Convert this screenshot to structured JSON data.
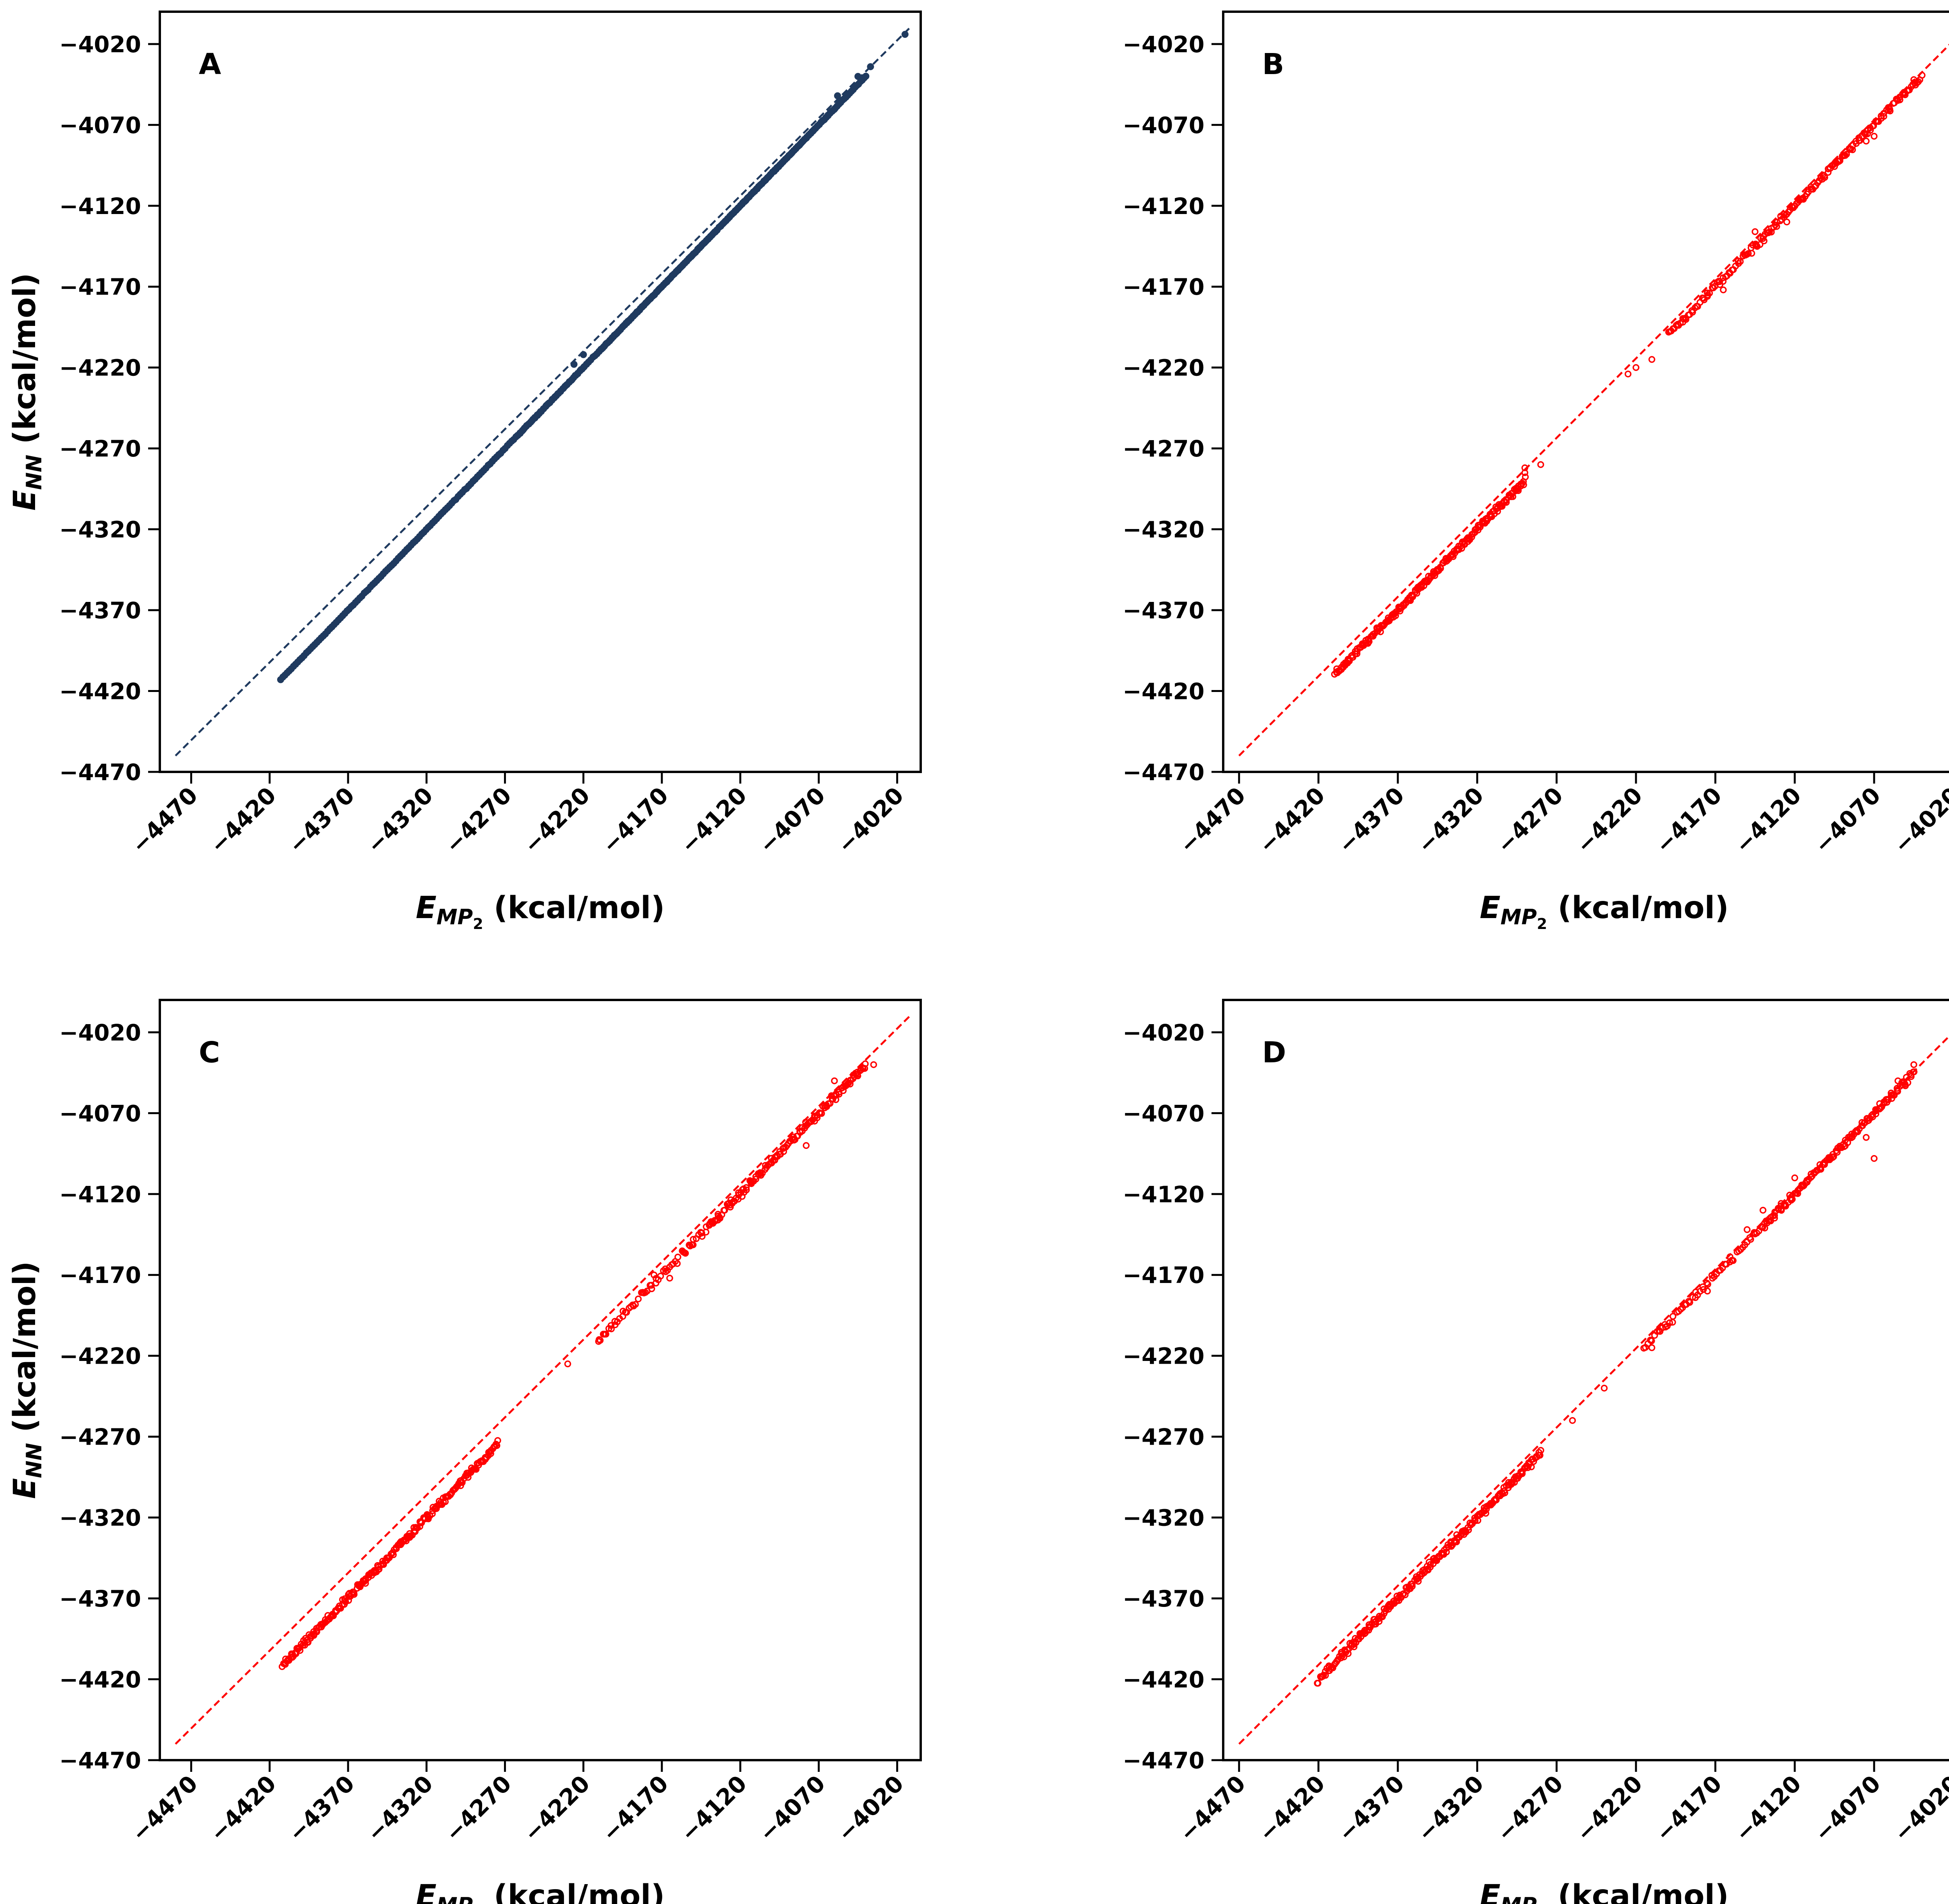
{
  "chart_data": [
    {
      "panel_label": "A",
      "type": "scatter",
      "xlabel_main": "E",
      "xlabel_sub": "MP",
      "xlabel_subsub": "2",
      "xlabel_unit": " (kcal/mol)",
      "ylabel_main": "E",
      "ylabel_sub": "NN",
      "ylabel_unit": " (kcal/mol)",
      "xlim": [
        -4490,
        -4005
      ],
      "ylim": [
        -4470,
        -4000
      ],
      "xticks": [
        -4470,
        -4420,
        -4370,
        -4320,
        -4270,
        -4220,
        -4170,
        -4120,
        -4070,
        -4020
      ],
      "xtick_labels": [
        "−4470",
        "−4420",
        "−4370",
        "−4320",
        "−4270",
        "−4220",
        "−4170",
        "−4120",
        "−4070",
        "−4020"
      ],
      "yticks": [
        -4470,
        -4420,
        -4370,
        -4320,
        -4270,
        -4220,
        -4170,
        -4120,
        -4070,
        -4020
      ],
      "ytick_labels": [
        "−4470",
        "−4420",
        "−4370",
        "−4320",
        "−4270",
        "−4220",
        "−4170",
        "−4120",
        "−4070",
        "−4020"
      ],
      "point_color": "#1f3a5f",
      "line_color": "#1f3a5f",
      "diagonal": [
        [
          -4480,
          -4460
        ],
        [
          -4012,
          -4010
        ]
      ],
      "point_style": "filled",
      "series": [
        {
          "segments": [
            [
              -4413,
              -4060
            ],
            [
              -4262,
              -4218
            ],
            [
              -4210,
              -4040
            ]
          ],
          "n": [
            260,
            25,
            150
          ],
          "spread": 0.4
        },
        {
          "points": [
            [
              -4226,
              -4218
            ],
            [
              -4220,
              -4212
            ],
            [
              -4058,
              -4052
            ],
            [
              -4045,
              -4040
            ],
            [
              -4037,
              -4034
            ],
            [
              -4015,
              -4014
            ]
          ]
        }
      ]
    },
    {
      "panel_label": "B",
      "type": "scatter",
      "xlabel_main": "E",
      "xlabel_sub": "MP",
      "xlabel_subsub": "2",
      "xlabel_unit": " (kcal/mol)",
      "ylabel_main": "",
      "ylabel_sub": "",
      "ylabel_unit": "",
      "xlim": [
        -4480,
        -4000
      ],
      "ylim": [
        -4470,
        -4000
      ],
      "xticks": [
        -4470,
        -4420,
        -4370,
        -4320,
        -4270,
        -4220,
        -4170,
        -4120,
        -4070,
        -4020
      ],
      "xtick_labels": [
        "−4470",
        "−4420",
        "−4370",
        "−4320",
        "−4270",
        "−4220",
        "−4170",
        "−4120",
        "−4070",
        "−4020"
      ],
      "yticks": [
        -4470,
        -4420,
        -4370,
        -4320,
        -4270,
        -4220,
        -4170,
        -4120,
        -4070,
        -4020
      ],
      "ytick_labels": [
        "−4470",
        "−4420",
        "−4370",
        "−4320",
        "−4270",
        "−4220",
        "−4170",
        "−4120",
        "−4070",
        "−4020"
      ],
      "point_color": "#ff0000",
      "line_color": "#ff0000",
      "diagonal": [
        [
          -4470,
          -4460
        ],
        [
          -4012,
          -4010
        ]
      ],
      "point_style": "hollow",
      "series": [
        {
          "segments": [
            [
              -4410,
              -4290
            ],
            [
              -4200,
              -4140
            ],
            [
              -4140,
              -4040
            ]
          ],
          "n": [
            220,
            60,
            120
          ],
          "spread": 3
        },
        {
          "points": [
            [
              -4290,
              -4285
            ],
            [
              -4290,
              -4282
            ],
            [
              -4280,
              -4280
            ],
            [
              -4225,
              -4224
            ],
            [
              -4220,
              -4220
            ],
            [
              -4210,
              -4215
            ],
            [
              -4190,
              -4190
            ],
            [
              -4175,
              -4176
            ],
            [
              -4165,
              -4172
            ],
            [
              -4145,
              -4136
            ],
            [
              -4125,
              -4130
            ],
            [
              -4075,
              -4080
            ],
            [
              -4070,
              -4077
            ],
            [
              -4045,
              -4042
            ]
          ]
        }
      ]
    },
    {
      "panel_label": "C",
      "type": "scatter",
      "xlabel_main": "E",
      "xlabel_sub": "MP",
      "xlabel_subsub": "2",
      "xlabel_unit": " (kcal/mol)",
      "ylabel_main": "E",
      "ylabel_sub": "NN",
      "ylabel_unit": " (kcal/mol)",
      "xlim": [
        -4490,
        -4005
      ],
      "ylim": [
        -4470,
        -4000
      ],
      "xticks": [
        -4470,
        -4420,
        -4370,
        -4320,
        -4270,
        -4220,
        -4170,
        -4120,
        -4070,
        -4020
      ],
      "xtick_labels": [
        "−4470",
        "−4420",
        "−4370",
        "−4320",
        "−4270",
        "−4220",
        "−4170",
        "−4120",
        "−4070",
        "−4020"
      ],
      "yticks": [
        -4470,
        -4420,
        -4370,
        -4320,
        -4270,
        -4220,
        -4170,
        -4120,
        -4070,
        -4020
      ],
      "ytick_labels": [
        "−4470",
        "−4420",
        "−4370",
        "−4320",
        "−4270",
        "−4220",
        "−4170",
        "−4120",
        "−4070",
        "−4020"
      ],
      "point_color": "#ff0000",
      "line_color": "#ff0000",
      "diagonal": [
        [
          -4480,
          -4460
        ],
        [
          -4012,
          -4010
        ]
      ],
      "point_style": "hollow",
      "series": [
        {
          "segments": [
            [
              -4412,
              -4275
            ],
            [
              -4210,
              -4140
            ],
            [
              -4140,
              -4040
            ]
          ],
          "n": [
            240,
            60,
            140
          ],
          "spread": 3.5
        },
        {
          "points": [
            [
              -4230,
              -4225
            ],
            [
              -4210,
              -4210
            ],
            [
              -4175,
              -4170
            ],
            [
              -4165,
              -4172
            ],
            [
              -4150,
              -4148
            ],
            [
              -4078,
              -4090
            ],
            [
              -4060,
              -4050
            ],
            [
              -4050,
              -4052
            ],
            [
              -4035,
              -4040
            ]
          ]
        }
      ]
    },
    {
      "panel_label": "D",
      "type": "scatter",
      "xlabel_main": "E",
      "xlabel_sub": "MP",
      "xlabel_subsub": "2",
      "xlabel_unit": " (kcal/mol)",
      "ylabel_main": "",
      "ylabel_sub": "",
      "ylabel_unit": "",
      "xlim": [
        -4480,
        -4000
      ],
      "ylim": [
        -4470,
        -4000
      ],
      "xticks": [
        -4470,
        -4420,
        -4370,
        -4320,
        -4270,
        -4220,
        -4170,
        -4120,
        -4070,
        -4020
      ],
      "xtick_labels": [
        "−4470",
        "−4420",
        "−4370",
        "−4320",
        "−4270",
        "−4220",
        "−4170",
        "−4120",
        "−4070",
        "−4020"
      ],
      "yticks": [
        -4470,
        -4420,
        -4370,
        -4320,
        -4270,
        -4220,
        -4170,
        -4120,
        -4070,
        -4020
      ],
      "ytick_labels": [
        "−4470",
        "−4420",
        "−4370",
        "−4320",
        "−4270",
        "−4220",
        "−4170",
        "−4120",
        "−4070",
        "−4020"
      ],
      "point_color": "#ff0000",
      "line_color": "#ff0000",
      "diagonal": [
        [
          -4470,
          -4460
        ],
        [
          -4010,
          -4010
        ]
      ],
      "point_style": "hollow",
      "series": [
        {
          "segments": [
            [
              -4420,
              -4280
            ],
            [
              -4215,
              -4140
            ],
            [
              -4140,
              -4045
            ]
          ],
          "n": [
            240,
            60,
            140
          ],
          "spread": 3.5
        },
        {
          "points": [
            [
              -4260,
              -4260
            ],
            [
              -4240,
              -4240
            ],
            [
              -4210,
              -4215
            ],
            [
              -4175,
              -4180
            ],
            [
              -4150,
              -4142
            ],
            [
              -4140,
              -4130
            ],
            [
              -4120,
              -4110
            ],
            [
              -4075,
              -4085
            ],
            [
              -4070,
              -4098
            ],
            [
              -4055,
              -4050
            ],
            [
              -4045,
              -4040
            ]
          ]
        }
      ]
    }
  ]
}
